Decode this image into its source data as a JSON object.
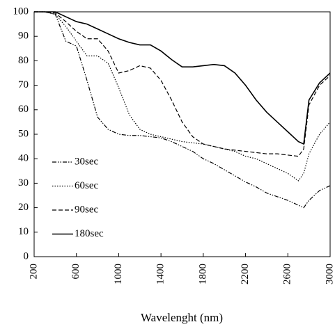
{
  "chart_data": {
    "type": "line",
    "xlabel": "Wavelenght (nm)",
    "x": [
      200,
      300,
      400,
      500,
      600,
      700,
      800,
      900,
      1000,
      1100,
      1200,
      1300,
      1400,
      1500,
      1600,
      1700,
      1800,
      1900,
      2000,
      2100,
      2200,
      2300,
      2400,
      2500,
      2600,
      2700,
      2750,
      2800,
      2900,
      3000
    ],
    "series": [
      {
        "name": "30sec",
        "color": "#000000",
        "values": [
          100,
          100,
          99,
          88,
          86,
          72,
          57,
          52,
          50,
          49.5,
          49.5,
          49,
          48.5,
          47,
          45,
          43,
          40,
          38,
          35.5,
          33,
          30.5,
          28.5,
          26,
          24.5,
          23,
          21,
          20,
          23,
          27,
          29
        ]
      },
      {
        "name": "60sec",
        "color": "#000000",
        "values": [
          100,
          100,
          99,
          94,
          88,
          82,
          82,
          79,
          69,
          58,
          52,
          50,
          49,
          48,
          47,
          46.5,
          46,
          45,
          44,
          43,
          41,
          40,
          38,
          36,
          34,
          31,
          34,
          42,
          50,
          55
        ]
      },
      {
        "name": "90sec",
        "color": "#000000",
        "values": [
          100,
          100,
          99.5,
          96,
          92,
          89,
          89,
          84,
          75,
          76,
          78,
          77,
          72,
          64,
          55,
          49,
          46,
          45,
          44,
          43.5,
          43,
          42.5,
          42,
          42,
          41.5,
          41,
          44,
          62,
          70,
          74
        ]
      },
      {
        "name": "180sec",
        "color": "#000000",
        "values": [
          100,
          100,
          100,
          98,
          96,
          95,
          93,
          91,
          89,
          87.5,
          86.5,
          86.5,
          84,
          80.5,
          77.5,
          77.5,
          78,
          78.5,
          78,
          75,
          70,
          64,
          59,
          55,
          51,
          47,
          46,
          64,
          71,
          75
        ]
      }
    ],
    "xlim": [
      200,
      3000
    ],
    "xticks": [
      200,
      600,
      1000,
      1400,
      1800,
      2200,
      2600,
      3000
    ],
    "ylim": [
      0,
      100
    ],
    "yticks": [
      0,
      10,
      20,
      30,
      40,
      50,
      60,
      70,
      80,
      90,
      100
    ],
    "grid": false
  }
}
